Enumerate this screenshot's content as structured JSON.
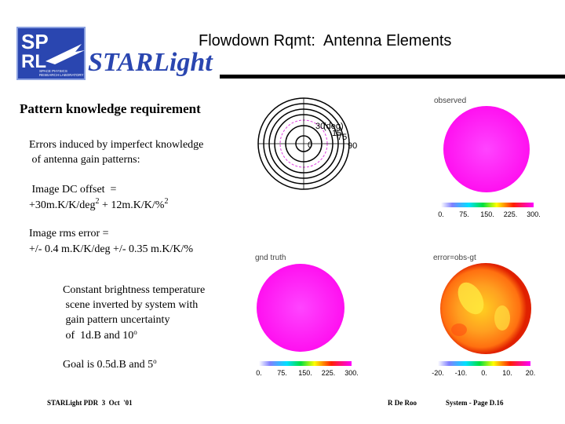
{
  "logo": {
    "top": "SP",
    "bottom": "RL",
    "caption": [
      "SPACE PHYSICS",
      "RESEARCH LABORATORY"
    ]
  },
  "header": {
    "brand": "STARLight",
    "title": "Flowdown Rqmt:  Antenna Elements"
  },
  "body": {
    "heading": "Pattern knowledge requirement",
    "intro": [
      "Errors induced by imperfect knowledge",
      " of antenna gain patterns:"
    ],
    "dc_offset": {
      "label": " Image DC offset  =",
      "formula": [
        "+30m.K/K/deg",
        "2",
        " + 12m.K/K/%",
        "2"
      ]
    },
    "rms": [
      "Image rms error =",
      "+/- 0.4 m.K/K/deg +/- 0.35 m.K/K/%"
    ],
    "scene": {
      "lines": [
        "Constant brightness temperature",
        " scene inverted by system with",
        " gain pattern uncertainty"
      ],
      "last": [
        " of  1d.B and 10",
        "o"
      ]
    },
    "goal": [
      "Goal is 0.5d.B and 5",
      "o"
    ]
  },
  "plots": {
    "polar": {
      "labels": [
        "30",
        "(deg)",
        "15",
        "0",
        "75",
        "90"
      ]
    },
    "observed": {
      "label": "observed",
      "colorbar": [
        "0.",
        "75.",
        "150.",
        "225.",
        "300."
      ]
    },
    "truth": {
      "label": "gnd truth",
      "colorbar": [
        "0.",
        "75.",
        "150.",
        "225.",
        "300."
      ]
    },
    "error": {
      "label": "error=obs-gt",
      "colorbar": [
        "-20.",
        "-10.",
        "0.",
        "10.",
        "20."
      ]
    }
  },
  "footer": {
    "left": "STARLight PDR  3  Oct  '01",
    "center": "R De Roo",
    "right": "System - Page D.16"
  }
}
